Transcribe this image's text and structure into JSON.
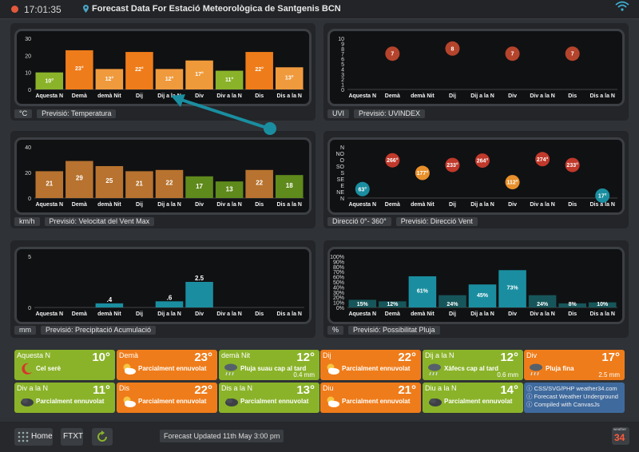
{
  "topbar": {
    "time": "17:01:35",
    "title": "Forecast Data For Estació Meteorològica de Santgenis BCN"
  },
  "colors": {
    "orange": "#ef7c1a",
    "green": "#8ab32a",
    "brown": "#b7732f",
    "olive": "#5f8a1c",
    "teal": "#1a8ea0",
    "darkteal": "#16565a",
    "red": "#c0392b",
    "blue": "#3f6a9e"
  },
  "day_labels": [
    "Aquesta N",
    "Demà",
    "demà Nit",
    "Dij",
    "Dij a la N",
    "Div",
    "Div a la N",
    "Dis",
    "Dis a la N"
  ],
  "temperature": {
    "unit": "°C",
    "label": "Previsió: Temperatura",
    "chart_data": {
      "type": "bar",
      "title": "Previsió: Temperatura",
      "ylabel": "°C",
      "ylim": [
        0,
        30
      ],
      "ticks": [
        "0",
        "10",
        "20",
        "30"
      ],
      "categories": [
        "Aquesta N",
        "Demà",
        "demà Nit",
        "Dij",
        "Dij a la N",
        "Div",
        "Div a la N",
        "Dis",
        "Dis a la N"
      ],
      "values": [
        10,
        23,
        12,
        22,
        12,
        17,
        11,
        22,
        13
      ],
      "labels": [
        "10°",
        "23°",
        "12°",
        "22°",
        "12°",
        "17°",
        "11°",
        "22°",
        "13°"
      ],
      "colors": [
        "#8ab32a",
        "#ef7c1a",
        "#f09a3e",
        "#ef7c1a",
        "#f09a3e",
        "#ef9a3a",
        "#8ab32a",
        "#ef7c1a",
        "#f09a3e"
      ]
    }
  },
  "uv": {
    "unit": "UVI",
    "label": "Previsió: UVINDEX",
    "chart_data": {
      "type": "scatter",
      "title": "Previsió: UVINDEX",
      "ylabel": "UVI",
      "ylim": [
        0,
        10
      ],
      "ticks": [
        "0",
        "1",
        "2",
        "3",
        "4",
        "5",
        "6",
        "7",
        "8",
        "9",
        "10"
      ],
      "categories": [
        "Aquesta N",
        "Demà",
        "demà Nit",
        "Dij",
        "Dij a la N",
        "Div",
        "Div a la N",
        "Dis",
        "Dis a la N"
      ],
      "values": [
        null,
        7,
        null,
        8,
        null,
        7,
        null,
        7,
        null
      ],
      "labels": [
        "",
        "7",
        "",
        "8",
        "",
        "7",
        "",
        "7",
        ""
      ]
    }
  },
  "wind": {
    "unit": "km/h",
    "label": "Previsió: Velocitat del Vent Max",
    "chart_data": {
      "type": "bar",
      "title": "Previsió: Velocitat del Vent Max",
      "ylabel": "km/h",
      "ylim": [
        0,
        40
      ],
      "ticks": [
        "0",
        "20",
        "40"
      ],
      "categories": [
        "Aquesta N",
        "Demà",
        "demà Nit",
        "Dij",
        "Dij a la N",
        "Div",
        "Div a la N",
        "Dis",
        "Dis a la N"
      ],
      "values": [
        21,
        29,
        25,
        21,
        22,
        17,
        13,
        22,
        18
      ],
      "labels": [
        "21",
        "29",
        "25",
        "21",
        "22",
        "17",
        "13",
        "22",
        "18"
      ],
      "colors": [
        "#b7732f",
        "#b7732f",
        "#b7732f",
        "#b7732f",
        "#b7732f",
        "#5f8a1c",
        "#5f8a1c",
        "#b7732f",
        "#5f8a1c"
      ]
    }
  },
  "direction": {
    "unit": "Direcció 0°- 360°",
    "label": "Previsió: Direcció Vent",
    "chart_data": {
      "type": "scatter",
      "title": "Previsió: Direcció Vent",
      "ylabel": "Direcció 0°- 360°",
      "ylim": [
        0,
        360
      ],
      "ticks": [
        "N",
        "NE",
        "E",
        "SE",
        "S",
        "SO",
        "O",
        "NO",
        "N"
      ],
      "categories": [
        "Aquesta N",
        "Demà",
        "demà Nit",
        "Dij",
        "Dij a la N",
        "Div",
        "Div a la N",
        "Dis",
        "Dis a la N"
      ],
      "values": [
        63,
        266,
        177,
        233,
        264,
        112,
        274,
        233,
        17
      ],
      "labels": [
        "63°",
        "266°",
        "177°",
        "233°",
        "264°",
        "112°",
        "274°",
        "233°",
        "17°"
      ],
      "colors": [
        "#1a8ea0",
        "#c0392b",
        "#e8902b",
        "#c0392b",
        "#c0392b",
        "#e8902b",
        "#c0392b",
        "#c0392b",
        "#1a8ea0"
      ]
    }
  },
  "precip": {
    "unit": "mm",
    "label": "Previsió: Precipitació Acumulació",
    "chart_data": {
      "type": "bar",
      "title": "Previsió: Precipitació Acumulació",
      "ylabel": "mm",
      "ylim": [
        0,
        5
      ],
      "ticks": [
        "0",
        "5"
      ],
      "categories": [
        "Aquesta N",
        "Demà",
        "demà Nit",
        "Dij",
        "Dij a la N",
        "Div",
        "Div a la N",
        "Dis",
        "Dis a la N"
      ],
      "values": [
        0,
        0,
        0.4,
        0,
        0.6,
        2.5,
        0,
        0,
        0
      ],
      "labels": [
        "",
        "",
        ".4",
        "",
        ".6",
        "2.5",
        "",
        "",
        ""
      ],
      "colors": [
        "#1a8ea0",
        "#1a8ea0",
        "#1a8ea0",
        "#1a8ea0",
        "#1a8ea0",
        "#1a8ea0",
        "#1a8ea0",
        "#1a8ea0",
        "#1a8ea0"
      ]
    }
  },
  "prob": {
    "unit": "%",
    "label": "Previsió: Possibilitat Pluja",
    "chart_data": {
      "type": "bar",
      "title": "Previsió: Possibilitat Pluja",
      "ylabel": "%",
      "ylim": [
        0,
        100
      ],
      "ticks": [
        "0%",
        "10%",
        "20%",
        "30%",
        "40%",
        "50%",
        "60%",
        "70%",
        "80%",
        "90%",
        "100%"
      ],
      "categories": [
        "Aquesta N",
        "Demà",
        "demà Nit",
        "Dij",
        "Dij a la N",
        "Div",
        "Div a la N",
        "Dis",
        "Dis a la N"
      ],
      "values": [
        15,
        12,
        61,
        24,
        45,
        73,
        24,
        8,
        10
      ],
      "labels": [
        "15%",
        "12%",
        "61%",
        "24%",
        "45%",
        "73%",
        "24%",
        "8%",
        "10%"
      ],
      "colors": [
        "#16565a",
        "#16565a",
        "#1a8ea0",
        "#16565a",
        "#1a8ea0",
        "#1a8ea0",
        "#16565a",
        "#16565a",
        "#16565a"
      ]
    }
  },
  "forecast_cards": [
    {
      "day": "Aquesta N",
      "temp": "10°",
      "cond": "Cel serè",
      "rain": "",
      "color": "green",
      "icon": "moon-icon"
    },
    {
      "day": "Demà",
      "temp": "23°",
      "cond": "Parcialment ennuvolat",
      "rain": "",
      "color": "orange",
      "icon": "partly-cloudy-icon"
    },
    {
      "day": "demà Nit",
      "temp": "12°",
      "cond": "Pluja suau cap al tard",
      "rain": "0.4 mm",
      "color": "green",
      "icon": "rain-cloud-icon"
    },
    {
      "day": "Dij",
      "temp": "22°",
      "cond": "Parcialment ennuvolat",
      "rain": "",
      "color": "orange",
      "icon": "partly-cloudy-icon"
    },
    {
      "day": "Dij a la N",
      "temp": "12°",
      "cond": "Xàfecs cap al tard",
      "rain": "0.6 mm",
      "color": "green",
      "icon": "rain-cloud-icon"
    },
    {
      "day": "Div",
      "temp": "17°",
      "cond": "Pluja fina",
      "rain": "2.5 mm",
      "color": "orange",
      "icon": "rain-cloud-icon"
    },
    {
      "day": "Div a la N",
      "temp": "11°",
      "cond": "Parcialment ennuvolat",
      "rain": "",
      "color": "green",
      "icon": "cloudy-night-icon"
    },
    {
      "day": "Dis",
      "temp": "22°",
      "cond": "Parcialment ennuvolat",
      "rain": "",
      "color": "orange",
      "icon": "partly-cloudy-icon"
    },
    {
      "day": "Dis a la N",
      "temp": "13°",
      "cond": "Parcialment ennuvolat",
      "rain": "",
      "color": "green",
      "icon": "cloudy-night-icon"
    },
    {
      "day": "Diu",
      "temp": "21°",
      "cond": "Parcialment ennuvolat",
      "rain": "",
      "color": "orange",
      "icon": "partly-cloudy-icon"
    },
    {
      "day": "Diu a la N",
      "temp": "14°",
      "cond": "Parcialment ennuvolat",
      "rain": "",
      "color": "green",
      "icon": "cloudy-night-icon"
    }
  ],
  "credits": {
    "line1": "ⓘ CSS/SVG/PHP weather34.com",
    "line2": "ⓘ Forecast Weather Underground",
    "line3": "ⓘ Compiled with CanvasJs"
  },
  "bottombar": {
    "home": "Home",
    "ftxt": "FTXT",
    "updated": "Forecast Updated 11th May 3:00 pm",
    "logo": "34",
    "logo_small": "weather"
  }
}
